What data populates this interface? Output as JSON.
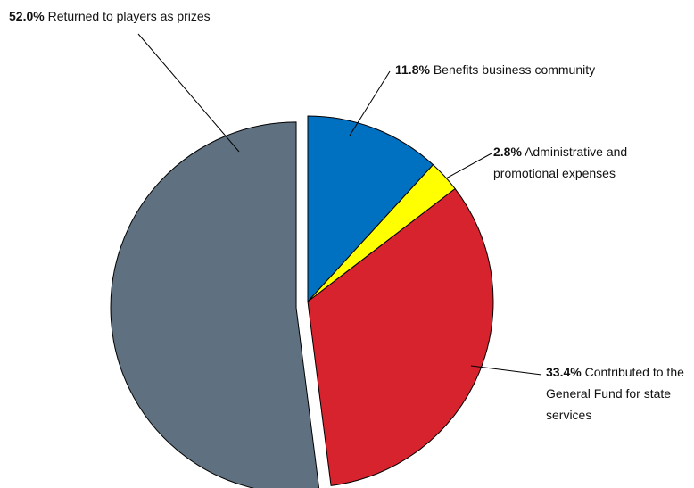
{
  "chart_data": {
    "type": "pie",
    "categories": [
      "Benefits business community",
      "Administrative and promotional expenses",
      "Contributed to the General Fund for state services",
      "Returned to players as prizes"
    ],
    "values": [
      11.8,
      2.8,
      33.4,
      52.0
    ],
    "value_labels": [
      "11.8%",
      "2.8%",
      "33.4%",
      "52.0%"
    ],
    "colors": [
      "#0070c0",
      "#ffff00",
      "#d7232e",
      "#5f7180"
    ]
  }
}
